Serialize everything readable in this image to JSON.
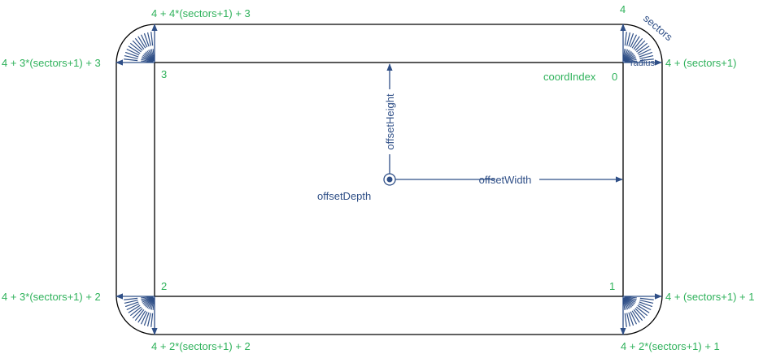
{
  "colors": {
    "label_green": "#2fb25b",
    "annotation_blue": "#2f4f87",
    "outline": "#000000"
  },
  "labels": {
    "top_left_outer": "4 + 4*(sectors+1) + 3",
    "top_right_outer": "4",
    "right_top_outer": "4 + (sectors+1)",
    "left_top_outer": "4 + 3*(sectors+1) + 3",
    "left_bottom_outer": "4 + 3*(sectors+1) + 2",
    "right_bottom_outer": "4 + (sectors+1) + 1",
    "bottom_left_outer": "4 + 2*(sectors+1) + 2",
    "bottom_right_outer": "4 + 2*(sectors+1) + 1",
    "coord_index": "coordIndex",
    "corner_0": "0",
    "corner_1": "1",
    "corner_2": "2",
    "corner_3": "3"
  },
  "annotations": {
    "sectors": "sectors",
    "radius": "radius",
    "offset_height": "offsetHeight",
    "offset_width": "offsetWidth",
    "offset_depth": "offsetDepth"
  }
}
